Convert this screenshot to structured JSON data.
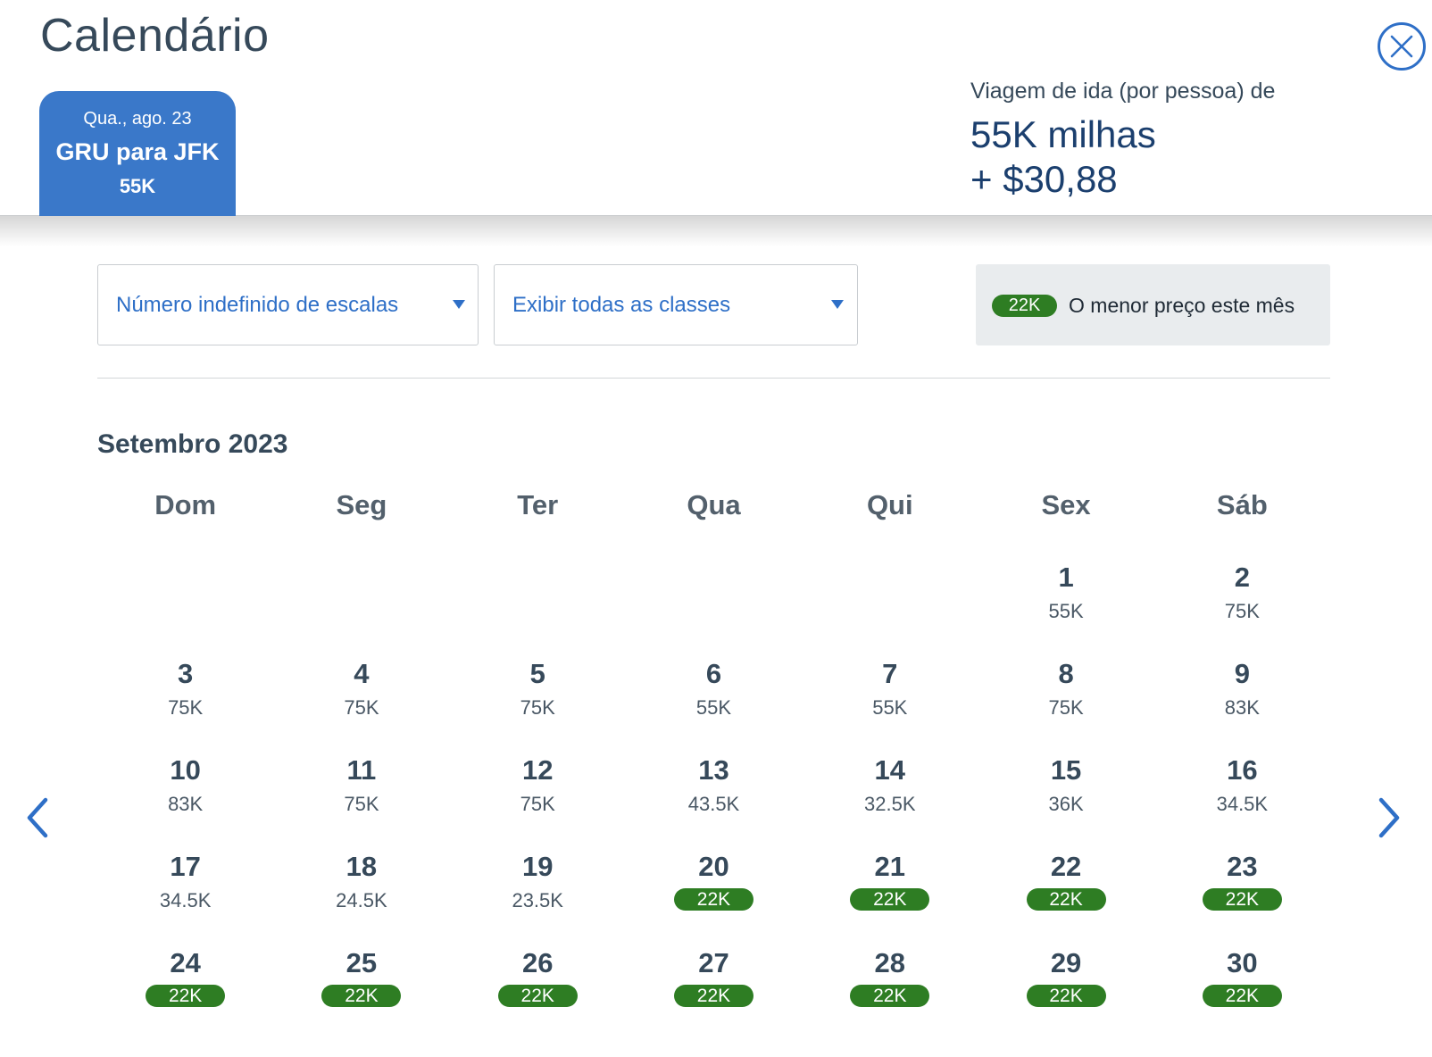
{
  "title": "Calendário",
  "close_icon": "close-icon",
  "selected_tab": {
    "date": "Qua., ago. 23",
    "route": "GRU para JFK",
    "price": "55K"
  },
  "summary": {
    "label": "Viagem de ida (por pessoa) de",
    "miles": "55K milhas",
    "cash": "+ $30,88"
  },
  "filters": {
    "stops": "Número indefinido de escalas",
    "classes": "Exibir todas as classes"
  },
  "legend": {
    "pill": "22K",
    "text": "O menor preço este mês"
  },
  "month": "Setembro 2023",
  "weekdays": [
    "Dom",
    "Seg",
    "Ter",
    "Qua",
    "Qui",
    "Sex",
    "Sáb"
  ],
  "leading_empty_days": 5,
  "days": [
    {
      "day": "1",
      "price": "55K",
      "lowest": false
    },
    {
      "day": "2",
      "price": "75K",
      "lowest": false
    },
    {
      "day": "3",
      "price": "75K",
      "lowest": false
    },
    {
      "day": "4",
      "price": "75K",
      "lowest": false
    },
    {
      "day": "5",
      "price": "75K",
      "lowest": false
    },
    {
      "day": "6",
      "price": "55K",
      "lowest": false
    },
    {
      "day": "7",
      "price": "55K",
      "lowest": false
    },
    {
      "day": "8",
      "price": "75K",
      "lowest": false
    },
    {
      "day": "9",
      "price": "83K",
      "lowest": false
    },
    {
      "day": "10",
      "price": "83K",
      "lowest": false
    },
    {
      "day": "11",
      "price": "75K",
      "lowest": false
    },
    {
      "day": "12",
      "price": "75K",
      "lowest": false
    },
    {
      "day": "13",
      "price": "43.5K",
      "lowest": false
    },
    {
      "day": "14",
      "price": "32.5K",
      "lowest": false
    },
    {
      "day": "15",
      "price": "36K",
      "lowest": false
    },
    {
      "day": "16",
      "price": "34.5K",
      "lowest": false
    },
    {
      "day": "17",
      "price": "34.5K",
      "lowest": false
    },
    {
      "day": "18",
      "price": "24.5K",
      "lowest": false
    },
    {
      "day": "19",
      "price": "23.5K",
      "lowest": false
    },
    {
      "day": "20",
      "price": "22K",
      "lowest": true
    },
    {
      "day": "21",
      "price": "22K",
      "lowest": true
    },
    {
      "day": "22",
      "price": "22K",
      "lowest": true
    },
    {
      "day": "23",
      "price": "22K",
      "lowest": true
    },
    {
      "day": "24",
      "price": "22K",
      "lowest": true
    },
    {
      "day": "25",
      "price": "22K",
      "lowest": true
    },
    {
      "day": "26",
      "price": "22K",
      "lowest": true
    },
    {
      "day": "27",
      "price": "22K",
      "lowest": true
    },
    {
      "day": "28",
      "price": "22K",
      "lowest": true
    },
    {
      "day": "29",
      "price": "22K",
      "lowest": true
    },
    {
      "day": "30",
      "price": "22K",
      "lowest": true
    }
  ],
  "nav": {
    "prev_icon": "chevron-left-icon",
    "next_icon": "chevron-right-icon"
  },
  "colors": {
    "accent": "#2e6fc7",
    "tab_bg": "#3a78c9",
    "lowest_price": "#2e7d23",
    "heading": "#36495a",
    "price_dark": "#1b3f6e"
  }
}
